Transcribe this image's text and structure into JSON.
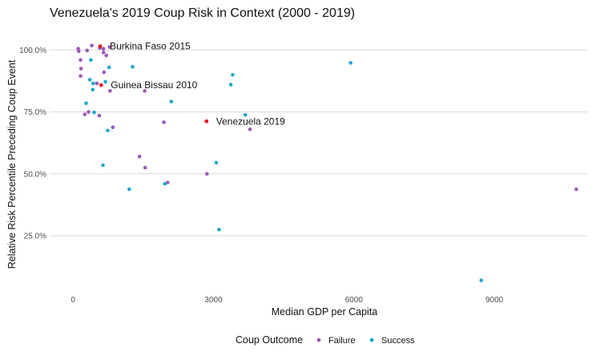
{
  "chart_data": {
    "type": "scatter",
    "title": "Venezuela's 2019 Coup Risk in Context (2000 - 2019)",
    "xlabel": "Median GDP per Capita",
    "ylabel": "Relative Risk Percentile Preceding Coup Event",
    "xlim": [
      -500,
      11000
    ],
    "ylim": [
      3,
      104
    ],
    "x_ticks": [
      0,
      3000,
      6000,
      9000
    ],
    "x_tick_labels": [
      "0",
      "3000",
      "6000",
      "9000"
    ],
    "y_ticks": [
      25,
      50,
      75,
      100
    ],
    "y_tick_labels": [
      "25.0%",
      "50.0%",
      "75.0%",
      "100.0%"
    ],
    "grid": "horizontal major lines",
    "legend": {
      "title": "Coup Outcome",
      "position": "bottom",
      "entries": [
        {
          "name": "Failure",
          "color": "#9b59b6"
        },
        {
          "name": "Success",
          "color": "#1fa6cf"
        }
      ]
    },
    "highlight_color": "#e31a1c",
    "series": [
      {
        "name": "Failure",
        "color": "#9b59b6",
        "points": [
          [
            110,
            100.5
          ],
          [
            120,
            99.5
          ],
          [
            160,
            96.0
          ],
          [
            170,
            92.5
          ],
          [
            160,
            89.5
          ],
          [
            300,
            99.8
          ],
          [
            400,
            101.8
          ],
          [
            570,
            100.8
          ],
          [
            650,
            100.5
          ],
          [
            650,
            99.0
          ],
          [
            710,
            97.8
          ],
          [
            780,
            101.2
          ],
          [
            250,
            74.0
          ],
          [
            330,
            75.0
          ],
          [
            510,
            86.5
          ],
          [
            560,
            73.5
          ],
          [
            660,
            91.0
          ],
          [
            790,
            83.5
          ],
          [
            850,
            68.8
          ],
          [
            1420,
            57.0
          ],
          [
            1530,
            83.5
          ],
          [
            1540,
            52.5
          ],
          [
            1940,
            70.8
          ],
          [
            2020,
            46.5
          ],
          [
            2860,
            50.0
          ],
          [
            3780,
            68.0
          ],
          [
            10750,
            43.8
          ]
        ]
      },
      {
        "name": "Success",
        "color": "#1fa6cf",
        "points": [
          [
            280,
            78.5
          ],
          [
            360,
            88.0
          ],
          [
            380,
            96.0
          ],
          [
            420,
            84.0
          ],
          [
            430,
            86.5
          ],
          [
            450,
            74.8
          ],
          [
            640,
            53.5
          ],
          [
            690,
            87.2
          ],
          [
            740,
            67.5
          ],
          [
            770,
            93.0
          ],
          [
            1200,
            43.8
          ],
          [
            1270,
            93.2
          ],
          [
            1960,
            46.0
          ],
          [
            2100,
            79.2
          ],
          [
            3060,
            54.5
          ],
          [
            3120,
            27.5
          ],
          [
            3370,
            86.0
          ],
          [
            3410,
            90.0
          ],
          [
            3680,
            73.8
          ],
          [
            5930,
            94.8
          ],
          [
            8720,
            7.0
          ]
        ]
      }
    ],
    "highlighted_points": [
      {
        "label": "Burkina Faso 2015",
        "x": 580,
        "y": 101.5
      },
      {
        "label": "Guinea Bissau 2010",
        "x": 600,
        "y": 85.8
      },
      {
        "label": "Venezuela 2019",
        "x": 2850,
        "y": 71.2
      }
    ]
  }
}
